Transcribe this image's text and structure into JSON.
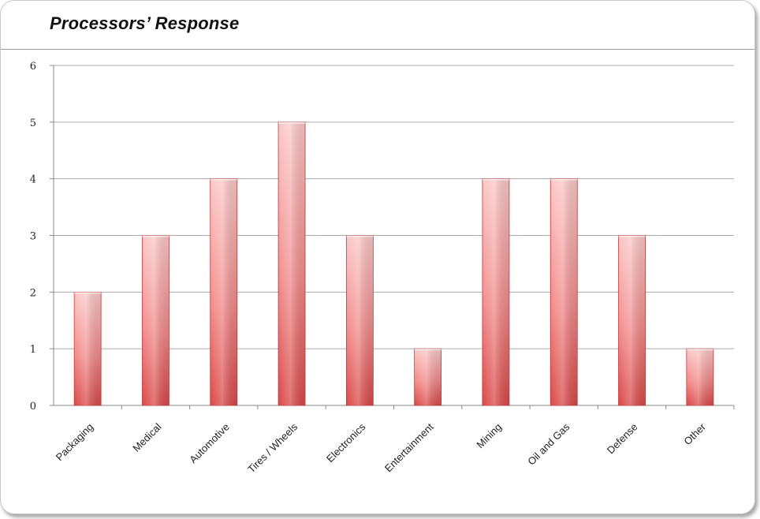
{
  "header": {
    "title": "Processors’ Response"
  },
  "chart_data": {
    "type": "bar",
    "title": "",
    "xlabel": "",
    "ylabel": "",
    "categories": [
      "Packaging",
      "Medical",
      "Automotive",
      "Tires / Wheels",
      "Electronics",
      "Entertainment",
      "Mining",
      "Oil and Gas",
      "Defense",
      "Other"
    ],
    "values": [
      2,
      3,
      4,
      5,
      3,
      1,
      4,
      4,
      3,
      1
    ],
    "ylim": [
      0,
      6
    ],
    "yticks": [
      "0",
      "1",
      "2",
      "3",
      "4",
      "5",
      "6"
    ],
    "grid": true,
    "legend": "none",
    "colors": {
      "bar_top": "#fbc8c8",
      "bar_mid": "#f28c8c",
      "bar_bottom": "#d94848",
      "bar_edge": "#c03a3a",
      "grid": "#aaaaaa",
      "axis": "#888888"
    }
  }
}
